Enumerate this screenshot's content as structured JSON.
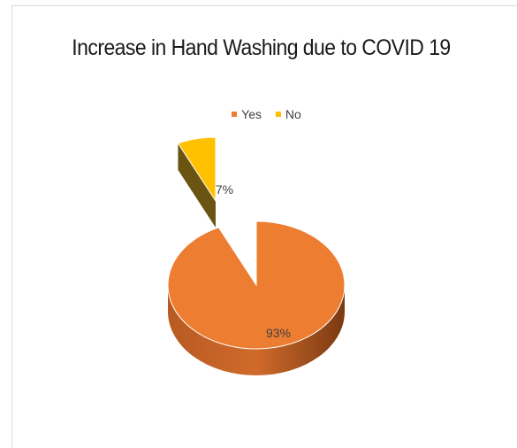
{
  "chart_data": {
    "type": "pie",
    "title": "Increase in Hand Washing due to COVID 19",
    "categories": [
      "Yes",
      "No"
    ],
    "values": [
      93,
      7
    ],
    "data_labels": [
      "93%",
      "7%"
    ],
    "legend": "top",
    "colors": {
      "Yes": "#ed7d31",
      "Yes_side": "#a14f1d",
      "No": "#ffc000",
      "No_side": "#6b5412"
    }
  }
}
